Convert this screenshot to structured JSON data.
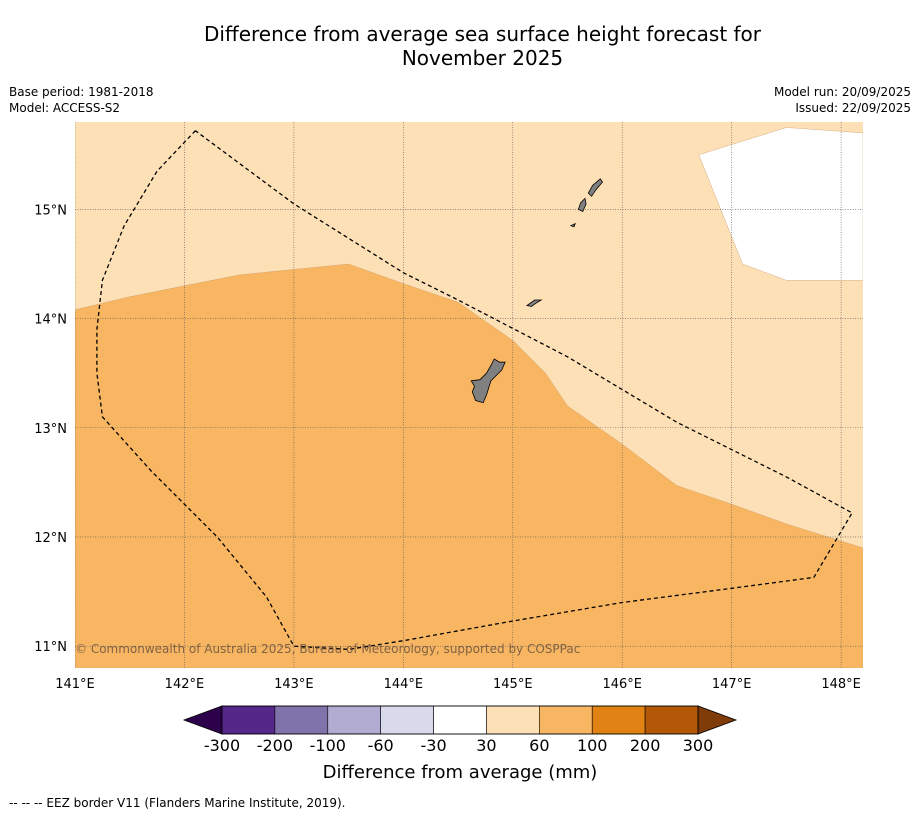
{
  "title_line1": "Difference from average sea surface height forecast for",
  "title_line2": "November 2025",
  "base_period": "Base period: 1981-2018",
  "model": "Model: ACCESS-S2",
  "model_run": "Model run: 20/09/2025",
  "issued": "Issued: 22/09/2025",
  "copyright": "© Commonwealth of Australia 2025, Bureau of Meteorology, supported by COSPPac",
  "footnote": "--  --  -- EEZ border V11 (Flanders Marine Institute, 2019).",
  "map": {
    "lon_range": [
      141.0,
      148.2
    ],
    "lat_range": [
      10.8,
      15.8
    ],
    "lon_ticks": [
      141,
      142,
      143,
      144,
      145,
      146,
      147,
      148
    ],
    "lon_tick_labels": [
      "141°E",
      "142°E",
      "143°E",
      "144°E",
      "145°E",
      "146°E",
      "147°E",
      "148°E"
    ],
    "lat_ticks": [
      11,
      12,
      13,
      14,
      15
    ],
    "lat_tick_labels": [
      "11°N",
      "12°N",
      "13°N",
      "14°N",
      "15°N"
    ],
    "background_category": "30 to 60",
    "regions": [
      {
        "category": "60 to 100",
        "color": "#f9b662",
        "polygon_lonlat": [
          [
            141.0,
            14.08
          ],
          [
            141.5,
            14.2
          ],
          [
            142.0,
            14.3
          ],
          [
            142.5,
            14.4
          ],
          [
            143.0,
            14.45
          ],
          [
            143.5,
            14.5
          ],
          [
            144.0,
            14.32
          ],
          [
            144.5,
            14.15
          ],
          [
            145.0,
            13.8
          ],
          [
            145.3,
            13.5
          ],
          [
            145.5,
            13.2
          ],
          [
            146.0,
            12.85
          ],
          [
            146.5,
            12.47
          ],
          [
            147.0,
            12.3
          ],
          [
            147.5,
            12.12
          ],
          [
            148.2,
            11.9
          ],
          [
            148.2,
            10.8
          ],
          [
            141.0,
            10.8
          ]
        ]
      },
      {
        "category": "-30 to 30",
        "color": "#ffffff",
        "polygon_lonlat": [
          [
            146.7,
            15.5
          ],
          [
            147.5,
            15.75
          ],
          [
            148.2,
            15.7
          ],
          [
            148.2,
            14.35
          ],
          [
            147.5,
            14.35
          ],
          [
            147.1,
            14.5
          ]
        ]
      }
    ],
    "land": [
      {
        "name": "Guam",
        "color": "#808080",
        "polygon_lonlat": [
          [
            144.83,
            13.63
          ],
          [
            144.88,
            13.6
          ],
          [
            144.93,
            13.6
          ],
          [
            144.9,
            13.53
          ],
          [
            144.8,
            13.43
          ],
          [
            144.76,
            13.3
          ],
          [
            144.73,
            13.23
          ],
          [
            144.66,
            13.25
          ],
          [
            144.63,
            13.33
          ],
          [
            144.65,
            13.38
          ],
          [
            144.62,
            13.43
          ],
          [
            144.7,
            13.44
          ],
          [
            144.76,
            13.5
          ],
          [
            144.8,
            13.57
          ]
        ]
      },
      {
        "name": "Rota",
        "color": "#808080",
        "polygon_lonlat": [
          [
            145.13,
            14.12
          ],
          [
            145.2,
            14.17
          ],
          [
            145.26,
            14.17
          ],
          [
            145.21,
            14.14
          ],
          [
            145.17,
            14.11
          ]
        ]
      },
      {
        "name": "Tinian",
        "color": "#808080",
        "polygon_lonlat": [
          [
            145.62,
            15.06
          ],
          [
            145.66,
            15.1
          ],
          [
            145.67,
            15.05
          ],
          [
            145.64,
            14.98
          ],
          [
            145.6,
            15.0
          ]
        ]
      },
      {
        "name": "Saipan",
        "color": "#808080",
        "polygon_lonlat": [
          [
            145.73,
            15.22
          ],
          [
            145.8,
            15.28
          ],
          [
            145.82,
            15.25
          ],
          [
            145.76,
            15.18
          ],
          [
            145.72,
            15.12
          ],
          [
            145.69,
            15.15
          ]
        ]
      },
      {
        "name": "Aguijan",
        "color": "#808080",
        "polygon_lonlat": [
          [
            145.53,
            14.85
          ],
          [
            145.57,
            14.87
          ],
          [
            145.56,
            14.84
          ]
        ]
      }
    ],
    "eez_border_lonlat": [
      [
        142.1,
        15.72
      ],
      [
        141.75,
        15.35
      ],
      [
        141.45,
        14.85
      ],
      [
        141.25,
        14.35
      ],
      [
        141.2,
        13.9
      ],
      [
        141.2,
        13.5
      ],
      [
        141.25,
        13.1
      ],
      [
        141.7,
        12.6
      ],
      [
        142.3,
        12.0
      ],
      [
        142.75,
        11.45
      ],
      [
        143.0,
        11.0
      ],
      [
        143.5,
        10.97
      ],
      [
        144.0,
        11.05
      ],
      [
        145.0,
        11.23
      ],
      [
        146.0,
        11.4
      ],
      [
        147.0,
        11.53
      ],
      [
        147.75,
        11.63
      ],
      [
        148.1,
        12.22
      ],
      [
        147.5,
        12.55
      ],
      [
        146.5,
        13.05
      ],
      [
        145.5,
        13.65
      ],
      [
        144.5,
        14.17
      ],
      [
        144.0,
        14.42
      ],
      [
        143.0,
        15.05
      ],
      [
        142.1,
        15.72
      ]
    ]
  },
  "colorbar": {
    "label": "Difference from average (mm)",
    "tick_labels": [
      "-300",
      "-200",
      "-100",
      "-60",
      "-30",
      "30",
      "60",
      "100",
      "200",
      "300"
    ],
    "colors": [
      "#542788",
      "#8073ac",
      "#b2abd2",
      "#d8daeb",
      "#ffffff",
      "#fee0b6",
      "#f9b662",
      "#e08214",
      "#b35806"
    ],
    "extend_low_color": "#2d004b",
    "extend_high_color": "#7f3b08"
  }
}
